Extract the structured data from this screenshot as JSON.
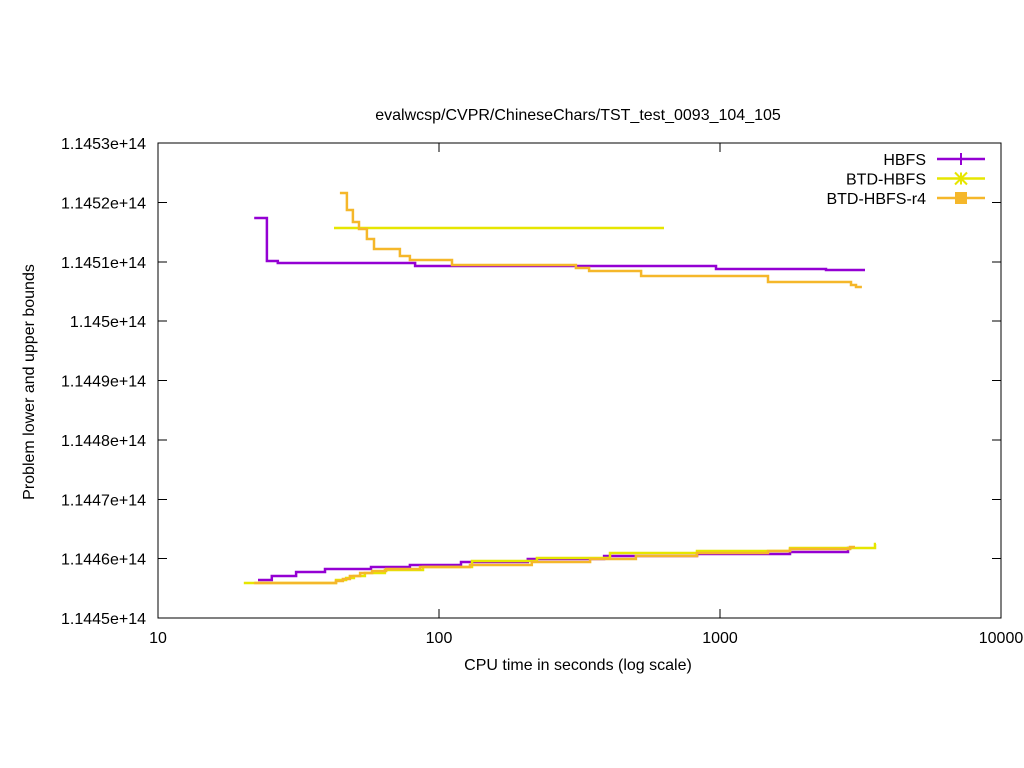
{
  "chart_data": {
    "type": "line",
    "step": true,
    "title": "evalwcsp/CVPR/ChineseChars/TST_test_0093_104_105",
    "xlabel": "CPU time in seconds (log scale)",
    "ylabel": "Problem lower and upper bounds",
    "xscale": "log",
    "xlim": [
      10,
      10000
    ],
    "ylim": [
      114450000000000.0,
      114530000000000.0
    ],
    "xticks": [
      10,
      100,
      1000,
      10000
    ],
    "xtick_labels": [
      "10",
      "100",
      "1000",
      "10000"
    ],
    "yticks": [
      114450000000000.0,
      114460000000000.0,
      114470000000000.0,
      114480000000000.0,
      114490000000000.0,
      114500000000000.0,
      114510000000000.0,
      114520000000000.0,
      114530000000000.0
    ],
    "ytick_labels": [
      "1.1445e+14",
      "1.1446e+14",
      "1.1447e+14",
      "1.1448e+14",
      "1.1449e+14",
      "1.145e+14",
      "1.1451e+14",
      "1.1452e+14",
      "1.1453e+14"
    ],
    "grid": false,
    "legend_position": "top-right",
    "series": [
      {
        "name": "HBFS",
        "color": "#9400d3",
        "marker": "plus",
        "upper": [
          [
            22.0,
            114517370000000.0
          ],
          [
            24.4,
            114510130000000.0
          ],
          [
            26.7,
            114509790000000.0
          ],
          [
            82.2,
            114509280000000.0
          ],
          [
            968,
            114508780000000.0
          ],
          [
            2384,
            114508610000000.0
          ],
          [
            3281,
            114508610000000.0
          ]
        ],
        "lower": [
          [
            22.7,
            114456400000000.0
          ],
          [
            25.4,
            114457070000000.0
          ],
          [
            31.0,
            114457750000000.0
          ],
          [
            39.3,
            114458250000000.0
          ],
          [
            57.3,
            114458590000000.0
          ],
          [
            78.8,
            114458930000000.0
          ],
          [
            119.8,
            114459430000000.0
          ],
          [
            207,
            114459940000000.0
          ],
          [
            387,
            114460440000000.0
          ],
          [
            828,
            114460780000000.0
          ],
          [
            1774,
            114461120000000.0
          ],
          [
            2854,
            114461790000000.0
          ],
          [
            2950,
            114461790000000.0
          ]
        ]
      },
      {
        "name": "BTD-HBFS",
        "color": "#e6e600",
        "marker": "asterisk",
        "upper": [
          [
            42.3,
            114515680000000.0
          ],
          [
            632,
            114515680000000.0
          ]
        ],
        "lower": [
          [
            20.2,
            114455890000000.0
          ],
          [
            43.0,
            114456400000000.0
          ],
          [
            46.7,
            114456740000000.0
          ],
          [
            49.8,
            114457070000000.0
          ],
          [
            54.5,
            114457580000000.0
          ],
          [
            64.2,
            114458080000000.0
          ],
          [
            87.7,
            114458590000000.0
          ],
          [
            131,
            114459600000000.0
          ],
          [
            223,
            114460110000000.0
          ],
          [
            406,
            114460950000000.0
          ],
          [
            828,
            114461280000000.0
          ],
          [
            1774,
            114461790000000.0
          ],
          [
            3562,
            114462470000000.0
          ],
          [
            3590,
            114462470000000.0
          ]
        ]
      },
      {
        "name": "BTD-HBFS-r4",
        "color": "#f5b72a",
        "marker": "square",
        "upper": [
          [
            44.4,
            114521580000000.0
          ],
          [
            47.0,
            114518720000000.0
          ],
          [
            49.4,
            114516690000000.0
          ],
          [
            51.9,
            114515520000000.0
          ],
          [
            55.4,
            114513830000000.0
          ],
          [
            58.7,
            114512150000000.0
          ],
          [
            72.6,
            114510970000000.0
          ],
          [
            78.8,
            114510290000000.0
          ],
          [
            111.2,
            114509450000000.0
          ],
          [
            307,
            114508950000000.0
          ],
          [
            342,
            114508440000000.0
          ],
          [
            524,
            114507600000000.0
          ],
          [
            1482,
            114506590000000.0
          ],
          [
            2926,
            114506080000000.0
          ],
          [
            3048,
            114505750000000.0
          ],
          [
            3200,
            114505750000000.0
          ]
        ],
        "lower": [
          [
            22.0,
            114455890000000.0
          ],
          [
            43.0,
            114456230000000.0
          ],
          [
            45.5,
            114456570000000.0
          ],
          [
            48.2,
            114457070000000.0
          ],
          [
            52.4,
            114457580000000.0
          ],
          [
            57.8,
            114457920000000.0
          ],
          [
            64.8,
            114458250000000.0
          ],
          [
            85.6,
            114458590000000.0
          ],
          [
            128.9,
            114458930000000.0
          ],
          [
            214,
            114459430000000.0
          ],
          [
            345,
            114459940000000.0
          ],
          [
            502,
            114460440000000.0
          ],
          [
            828,
            114460950000000.0
          ],
          [
            1482,
            114461280000000.0
          ],
          [
            1774,
            114461620000000.0
          ],
          [
            2901,
            114461960000000.0
          ],
          [
            3022,
            114461960000000.0
          ]
        ]
      }
    ]
  }
}
